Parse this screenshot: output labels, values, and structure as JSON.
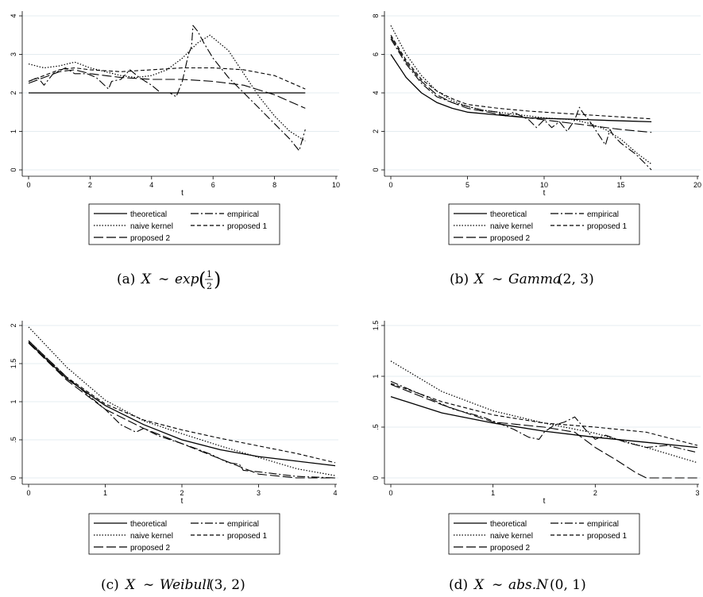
{
  "legend": {
    "theoretical": "theoretical",
    "empirical": "empirical",
    "naive": "naive kernel",
    "proposed1": "proposed 1",
    "proposed2": "proposed 2"
  },
  "chart_data": [
    {
      "type": "line",
      "panel": "a",
      "caption": "(a)",
      "caption_math": "X ~ exp(1/2)",
      "xlabel": "t",
      "ylabel": "",
      "xlim": [
        0,
        10
      ],
      "ylim": [
        0,
        4
      ],
      "xticks": [
        0,
        2,
        4,
        6,
        8,
        10
      ],
      "yticks": [
        0,
        1,
        2,
        3,
        4
      ],
      "ytick_labels": [
        "0",
        "1",
        "2",
        "3",
        "4"
      ],
      "legend_position": "bottom",
      "series": [
        {
          "name": "theoretical",
          "x": [
            0,
            9
          ],
          "y": [
            2,
            2
          ]
        },
        {
          "name": "empirical",
          "x": [
            0,
            0.3,
            0.5,
            0.8,
            1.2,
            1.5,
            1.9,
            2.2,
            2.6,
            2.7,
            3.0,
            3.3,
            3.6,
            4.0,
            4.3,
            4.6,
            4.8,
            5.0,
            5.2,
            5.3,
            5.35,
            5.5,
            5.7,
            6.0,
            6.5,
            7.0,
            7.5,
            8.0,
            8.5,
            8.8,
            9.0
          ],
          "y": [
            2.3,
            2.4,
            2.2,
            2.5,
            2.65,
            2.5,
            2.5,
            2.4,
            2.1,
            2.3,
            2.35,
            2.6,
            2.4,
            2.2,
            2.0,
            2.0,
            1.9,
            2.3,
            3.0,
            3.2,
            3.75,
            3.6,
            3.3,
            2.9,
            2.4,
            2.0,
            1.6,
            1.2,
            0.8,
            0.5,
            1.05
          ]
        },
        {
          "name": "naive kernel",
          "x": [
            0,
            0.5,
            1,
            1.5,
            2,
            2.5,
            3,
            3.5,
            4,
            4.5,
            5,
            5.5,
            5.9,
            6.5,
            7,
            7.5,
            8,
            8.5,
            9
          ],
          "y": [
            2.75,
            2.65,
            2.7,
            2.8,
            2.65,
            2.55,
            2.45,
            2.4,
            2.45,
            2.6,
            2.9,
            3.3,
            3.5,
            3.1,
            2.5,
            1.9,
            1.4,
            1.0,
            0.75
          ]
        },
        {
          "name": "proposed 1",
          "x": [
            0,
            0.5,
            1,
            1.5,
            2,
            3,
            4,
            5,
            6,
            7,
            8,
            9
          ],
          "y": [
            2.3,
            2.45,
            2.6,
            2.65,
            2.6,
            2.55,
            2.6,
            2.65,
            2.65,
            2.6,
            2.45,
            2.1
          ]
        },
        {
          "name": "proposed 2",
          "x": [
            0,
            0.5,
            1,
            1.5,
            2,
            3,
            4,
            5,
            6,
            7,
            8,
            9
          ],
          "y": [
            2.25,
            2.4,
            2.55,
            2.6,
            2.5,
            2.4,
            2.35,
            2.35,
            2.3,
            2.2,
            1.95,
            1.6
          ]
        }
      ]
    },
    {
      "type": "line",
      "panel": "b",
      "caption": "(b)",
      "caption_math": "X ~ Gamma(2,3)",
      "xlabel": "t",
      "ylabel": "",
      "xlim": [
        0,
        20
      ],
      "ylim": [
        0,
        8
      ],
      "xticks": [
        0,
        5,
        10,
        15,
        20
      ],
      "yticks": [
        0,
        2,
        4,
        6,
        8
      ],
      "ytick_labels": [
        "0",
        "2",
        "4",
        "6",
        "8"
      ],
      "legend_position": "bottom",
      "series": [
        {
          "name": "theoretical",
          "x": [
            0,
            1,
            2,
            3,
            4,
            5,
            7,
            9,
            11,
            13,
            15,
            17
          ],
          "y": [
            6.0,
            4.8,
            4.0,
            3.5,
            3.2,
            3.0,
            2.85,
            2.7,
            2.65,
            2.6,
            2.55,
            2.5
          ]
        },
        {
          "name": "empirical",
          "x": [
            0,
            1,
            2,
            3,
            4,
            5,
            6,
            7,
            7.5,
            8,
            9,
            9.5,
            10,
            10.5,
            11,
            11.5,
            12,
            12.3,
            12.5,
            13,
            13.5,
            14,
            14.3,
            14.5,
            15,
            16,
            17
          ],
          "y": [
            6.8,
            5.5,
            4.5,
            3.8,
            3.5,
            3.3,
            3.1,
            3.0,
            2.8,
            3.0,
            2.6,
            2.2,
            2.6,
            2.2,
            2.5,
            2.0,
            2.6,
            3.25,
            3.0,
            2.5,
            1.9,
            1.3,
            2.1,
            1.8,
            1.4,
            0.8,
            0.0
          ]
        },
        {
          "name": "naive kernel",
          "x": [
            0,
            1,
            2,
            3,
            4,
            5,
            6,
            8,
            10,
            12,
            13,
            14,
            15,
            16,
            17
          ],
          "y": [
            7.5,
            6.0,
            4.9,
            4.1,
            3.6,
            3.3,
            3.1,
            2.9,
            2.7,
            2.6,
            2.4,
            2.1,
            1.6,
            0.9,
            0.3
          ]
        },
        {
          "name": "proposed 1",
          "x": [
            0,
            1,
            2,
            3,
            4,
            5,
            7,
            9,
            11,
            13,
            15,
            17
          ],
          "y": [
            7.0,
            5.7,
            4.7,
            4.1,
            3.7,
            3.4,
            3.2,
            3.05,
            2.95,
            2.85,
            2.75,
            2.65
          ]
        },
        {
          "name": "proposed 2",
          "x": [
            0,
            1,
            2,
            3,
            4,
            5,
            7,
            9,
            11,
            13,
            15,
            17
          ],
          "y": [
            6.9,
            5.6,
            4.6,
            3.9,
            3.5,
            3.2,
            2.9,
            2.7,
            2.5,
            2.3,
            2.1,
            1.95
          ]
        }
      ]
    },
    {
      "type": "line",
      "panel": "c",
      "caption": "(c)",
      "caption_math": "X ~ Weibull(3,2)",
      "xlabel": "t",
      "ylabel": "",
      "xlim": [
        0,
        4
      ],
      "ylim": [
        0,
        2
      ],
      "xticks": [
        0,
        1,
        2,
        3,
        4
      ],
      "yticks": [
        0,
        0.5,
        1,
        1.5,
        2
      ],
      "ytick_labels": [
        "0",
        ".5",
        "1",
        "1.5",
        "2"
      ],
      "legend_position": "bottom",
      "series": [
        {
          "name": "theoretical",
          "x": [
            0,
            0.5,
            1,
            1.5,
            2,
            2.5,
            3,
            3.5,
            4
          ],
          "y": [
            1.78,
            1.3,
            0.95,
            0.7,
            0.5,
            0.37,
            0.28,
            0.22,
            0.16
          ]
        },
        {
          "name": "empirical",
          "x": [
            0,
            0.5,
            1,
            1.2,
            1.4,
            1.5,
            1.7,
            2,
            2.2,
            2.4,
            2.6,
            2.75,
            2.8,
            3,
            3.5,
            4
          ],
          "y": [
            1.8,
            1.32,
            0.9,
            0.7,
            0.6,
            0.65,
            0.55,
            0.45,
            0.38,
            0.3,
            0.2,
            0.18,
            0.1,
            0.08,
            0.02,
            0.0
          ]
        },
        {
          "name": "naive kernel",
          "x": [
            0,
            0.5,
            1,
            1.5,
            2,
            2.5,
            3,
            3.5,
            4
          ],
          "y": [
            1.98,
            1.45,
            1.02,
            0.75,
            0.58,
            0.42,
            0.27,
            0.12,
            0.03
          ]
        },
        {
          "name": "proposed 1",
          "x": [
            0,
            0.5,
            1,
            1.5,
            2,
            2.5,
            3,
            3.5,
            4
          ],
          "y": [
            1.8,
            1.32,
            0.97,
            0.76,
            0.63,
            0.52,
            0.42,
            0.32,
            0.2
          ]
        },
        {
          "name": "proposed 2",
          "x": [
            0,
            0.5,
            1,
            1.5,
            2,
            2.5,
            3,
            3.5,
            4
          ],
          "y": [
            1.77,
            1.28,
            0.9,
            0.65,
            0.45,
            0.25,
            0.05,
            0.0,
            0.0
          ]
        }
      ]
    },
    {
      "type": "line",
      "panel": "d",
      "caption": "(d)",
      "caption_math": "X ~ abs.N(0,1)",
      "xlabel": "t",
      "ylabel": "",
      "xlim": [
        0,
        3
      ],
      "ylim": [
        0,
        1.5
      ],
      "xticks": [
        0,
        1,
        2,
        3
      ],
      "yticks": [
        0,
        0.5,
        1,
        1.5
      ],
      "ytick_labels": [
        "0",
        ".5",
        "1",
        "1.5"
      ],
      "legend_position": "bottom",
      "series": [
        {
          "name": "theoretical",
          "x": [
            0,
            0.5,
            1,
            1.5,
            2,
            2.5,
            3
          ],
          "y": [
            0.8,
            0.64,
            0.54,
            0.46,
            0.4,
            0.35,
            0.3
          ]
        },
        {
          "name": "empirical",
          "x": [
            0,
            0.3,
            0.6,
            0.9,
            1.2,
            1.35,
            1.45,
            1.5,
            1.6,
            1.7,
            1.8,
            1.9,
            2.0,
            2.1,
            2.3,
            2.5,
            2.7,
            3.0
          ],
          "y": [
            0.95,
            0.82,
            0.68,
            0.6,
            0.48,
            0.4,
            0.38,
            0.45,
            0.52,
            0.55,
            0.6,
            0.48,
            0.38,
            0.42,
            0.35,
            0.3,
            0.32,
            0.25
          ]
        },
        {
          "name": "naive kernel",
          "x": [
            0,
            0.5,
            1,
            1.5,
            2,
            2.5,
            3
          ],
          "y": [
            1.15,
            0.85,
            0.66,
            0.54,
            0.44,
            0.3,
            0.15
          ]
        },
        {
          "name": "proposed 1",
          "x": [
            0,
            0.5,
            1,
            1.5,
            2,
            2.5,
            3
          ],
          "y": [
            0.93,
            0.75,
            0.62,
            0.54,
            0.5,
            0.45,
            0.32
          ]
        },
        {
          "name": "proposed 2",
          "x": [
            0,
            0.5,
            1,
            1.5,
            1.8,
            2.0,
            2.2,
            2.4,
            2.5,
            3
          ],
          "y": [
            0.92,
            0.72,
            0.55,
            0.5,
            0.45,
            0.3,
            0.18,
            0.05,
            0.0,
            0.0
          ]
        }
      ]
    }
  ]
}
